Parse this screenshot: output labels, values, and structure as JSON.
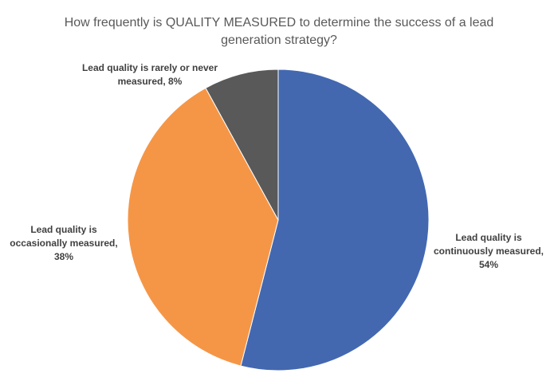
{
  "chart_data": {
    "type": "pie",
    "title": "How frequently is QUALITY MEASURED to determine the success of a lead generation strategy?",
    "values": [
      54,
      38,
      8
    ],
    "value_labels": [
      "Lead quality is continuously measured, 54%",
      "Lead quality is occasionally measured, 38%",
      "Lead quality is rarely or never measured, 8%"
    ],
    "colors": [
      "#4368b0",
      "#f59646",
      "#595959"
    ]
  }
}
